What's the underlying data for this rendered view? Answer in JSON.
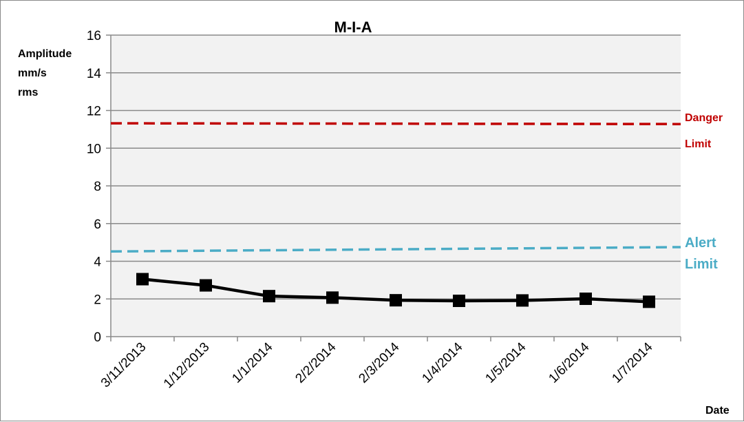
{
  "chart_data": {
    "type": "line",
    "title": "M-I-A",
    "ylabel": [
      "Amplitude",
      "mm/s",
      "rms"
    ],
    "xlabel": "Date",
    "ylim": [
      0,
      16
    ],
    "yticks": [
      0,
      2,
      4,
      6,
      8,
      10,
      12,
      14,
      16
    ],
    "grid": true,
    "categories": [
      "3/11/2013",
      "1/12/2013",
      "1/1/2014",
      "2/2/2014",
      "2/3/2014",
      "1/4/2014",
      "1/5/2014",
      "1/6/2014",
      "1/7/2014"
    ],
    "series": [
      {
        "values": [
          3.05,
          2.72,
          2.15,
          2.07,
          1.93,
          1.9,
          1.92,
          2.01,
          1.85
        ],
        "color": "#000000",
        "marker": "square"
      }
    ],
    "reference_lines": [
      {
        "name": "danger",
        "label_lines": [
          "Danger",
          "Limit"
        ],
        "y_start": 11.32,
        "y_end": 11.28,
        "color": "#c00000",
        "style": "dashed"
      },
      {
        "name": "alert",
        "label_lines": [
          "Alert",
          "Limit"
        ],
        "y_start": 4.52,
        "y_end": 4.75,
        "color": "#4bacc6",
        "style": "dashed"
      }
    ],
    "plot_background": "#f2f2f2",
    "gridline_color": "#898989"
  }
}
